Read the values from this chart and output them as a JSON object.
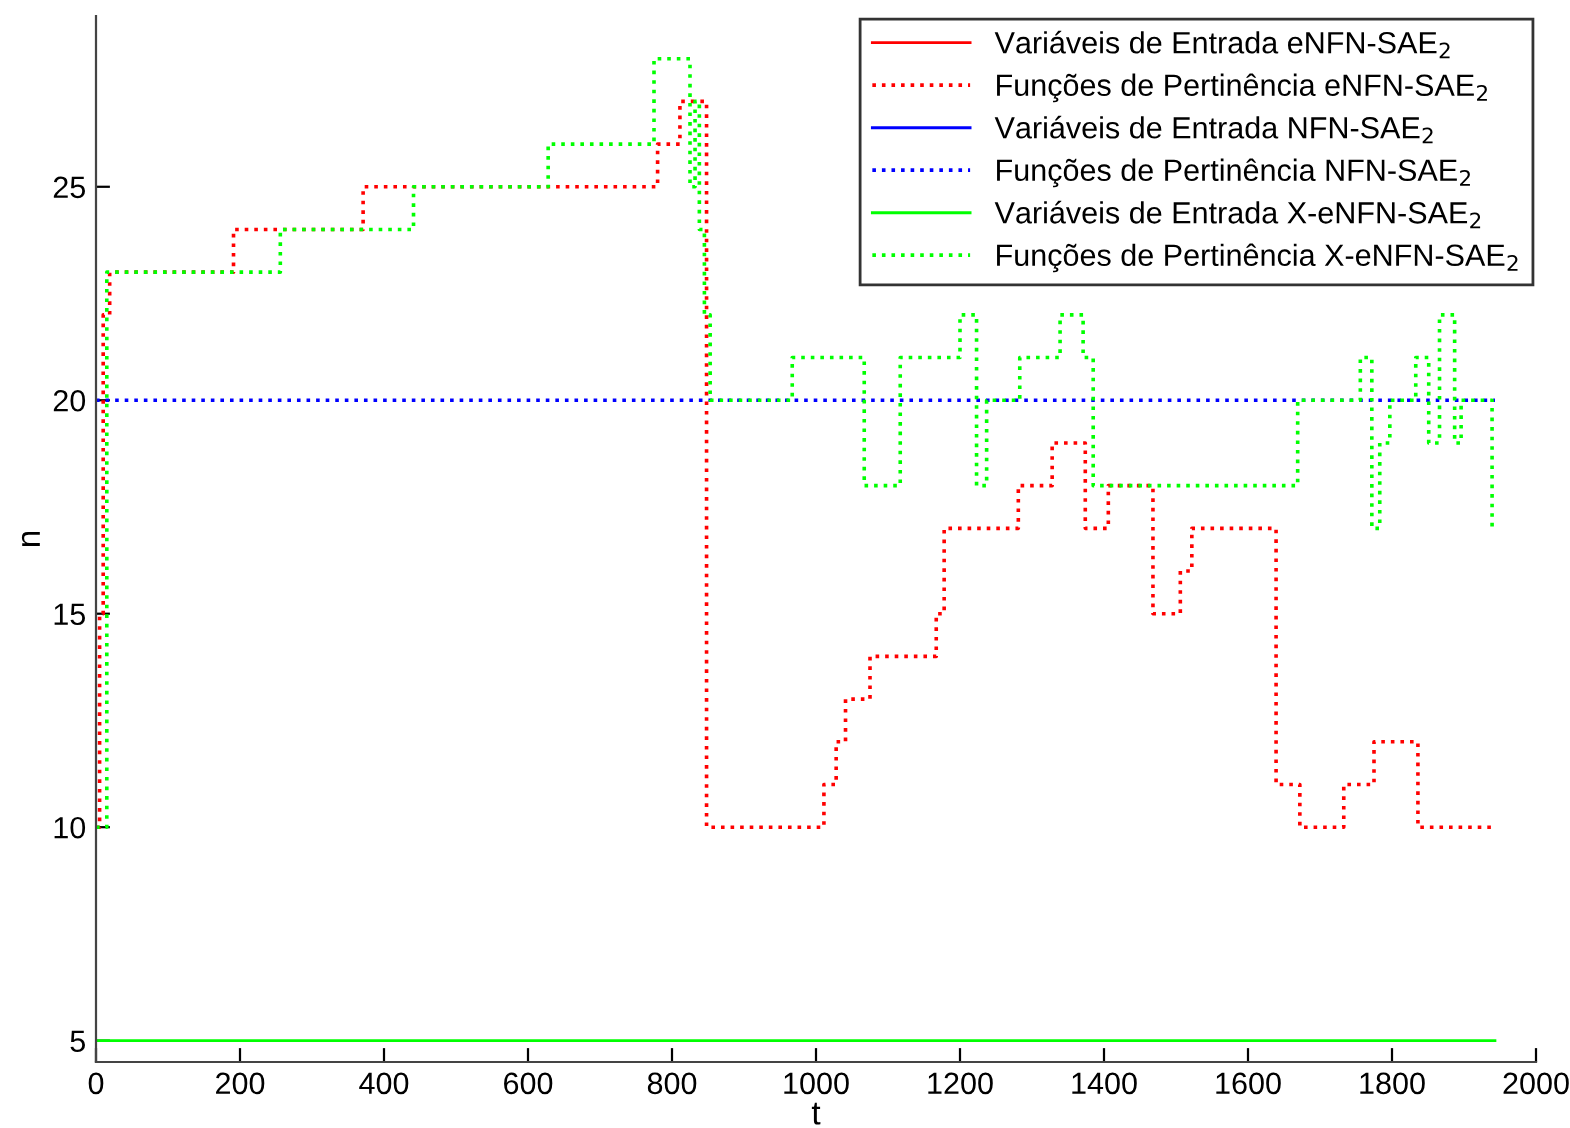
{
  "chart_data": {
    "type": "step",
    "xlabel": "t",
    "ylabel": "n",
    "xlim": [
      0,
      2000
    ],
    "xticks": [
      0,
      200,
      400,
      600,
      800,
      1000,
      1200,
      1400,
      1600,
      1800,
      2000
    ],
    "ylim": [
      4.5,
      29
    ],
    "yticks": [
      5,
      10,
      15,
      20,
      25
    ],
    "grid": false,
    "legend": "top right",
    "marker": "none",
    "series": [
      {
        "name": "Variáveis de Entrada eNFN-SAE$_{2}$",
        "type": "line",
        "line_style": "solid",
        "color": "#ff0000"
      },
      {
        "name": "Funções de Pertinência eNFN-SAE$_{2}$",
        "line_style": "dotted",
        "color": "#ff0000",
        "x": [
          0,
          5,
          10,
          19,
          191,
          371,
          780,
          811,
          841,
          848,
          1011,
          1028,
          1041,
          1075,
          1167,
          1178,
          1281,
          1328,
          1374,
          1406,
          1468,
          1506,
          1522,
          1639,
          1672,
          1733,
          1775,
          1836,
          1943
        ],
        "values": [
          10,
          15,
          22,
          23,
          24,
          25,
          26,
          27,
          27,
          10,
          11,
          12,
          13,
          14,
          15,
          17,
          18,
          19,
          17,
          18,
          15,
          16,
          17,
          11,
          10,
          11,
          12,
          10,
          10
        ]
      },
      {
        "name": "Variáveis de Entrada NFN-SAE$_{2}$",
        "type": "line",
        "line_style": "solid",
        "color": "#0000ff"
      },
      {
        "name": "Funções de Pertinência NFN-SAE$_{2}$",
        "line_style": "dotted",
        "color": "#0000ff",
        "x": [
          0,
          1943
        ],
        "values": [
          20,
          20
        ]
      },
      {
        "name": "Variáveis de Entrada X-eNFN-SAE$_{2}$",
        "type": "line",
        "line_style": "solid",
        "color": "#00ff00",
        "x": [
          0,
          1943
        ],
        "values": [
          5,
          5
        ]
      },
      {
        "name": "Funções de Pertinência X-eNFN-SAE$_{2}$",
        "line_style": "dotted",
        "color": "#00ff00",
        "x": [
          0,
          15,
          256,
          441,
          628,
          775,
          825,
          832,
          838,
          845,
          853,
          967,
          1067,
          1117,
          1200,
          1223,
          1237,
          1283,
          1339,
          1371,
          1385,
          1669,
          1756,
          1772,
          1783,
          1797,
          1833,
          1851,
          1866,
          1887,
          1896,
          1939,
          1943
        ],
        "values": [
          10,
          23,
          24,
          25,
          26,
          28,
          25,
          27,
          24,
          22,
          20,
          21,
          18,
          21,
          22,
          18,
          20,
          21,
          22,
          21,
          18,
          20,
          21,
          17,
          19,
          20,
          21,
          19,
          22,
          19,
          20,
          17,
          17
        ]
      }
    ]
  }
}
